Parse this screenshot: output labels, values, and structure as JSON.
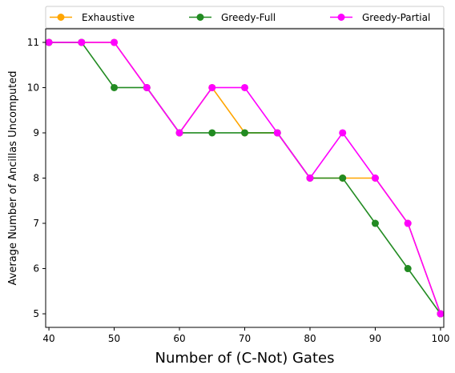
{
  "chart_data": {
    "type": "line",
    "title": "",
    "xlabel": "Number of (C-Not) Gates",
    "ylabel": "Average Number of Ancillas Uncomputed",
    "xlim": [
      39.5,
      100.5
    ],
    "ylim": [
      4.7,
      11.3
    ],
    "xticks": [
      40,
      50,
      60,
      70,
      80,
      90,
      100
    ],
    "yticks": [
      5,
      6,
      7,
      8,
      9,
      10,
      11
    ],
    "grid": false,
    "legend_position": "top, outside plot area",
    "x": [
      40,
      45,
      50,
      55,
      60,
      65,
      70,
      75,
      80,
      85,
      90,
      95,
      100
    ],
    "series": [
      {
        "name": "Exhaustive",
        "color": "#FFA500",
        "marker": "circle",
        "values": [
          11,
          11,
          11,
          10,
          9,
          10,
          9,
          9,
          8,
          8,
          8,
          7,
          5
        ]
      },
      {
        "name": "Greedy-Full",
        "color": "#228B22",
        "marker": "circle",
        "values": [
          11,
          11,
          10,
          10,
          9,
          9,
          9,
          9,
          8,
          8,
          7,
          6,
          5
        ]
      },
      {
        "name": "Greedy-Partial",
        "color": "#FF00FF",
        "marker": "circle",
        "values": [
          11,
          11,
          11,
          10,
          9,
          10,
          10,
          9,
          8,
          9,
          8,
          7,
          5
        ]
      }
    ]
  }
}
